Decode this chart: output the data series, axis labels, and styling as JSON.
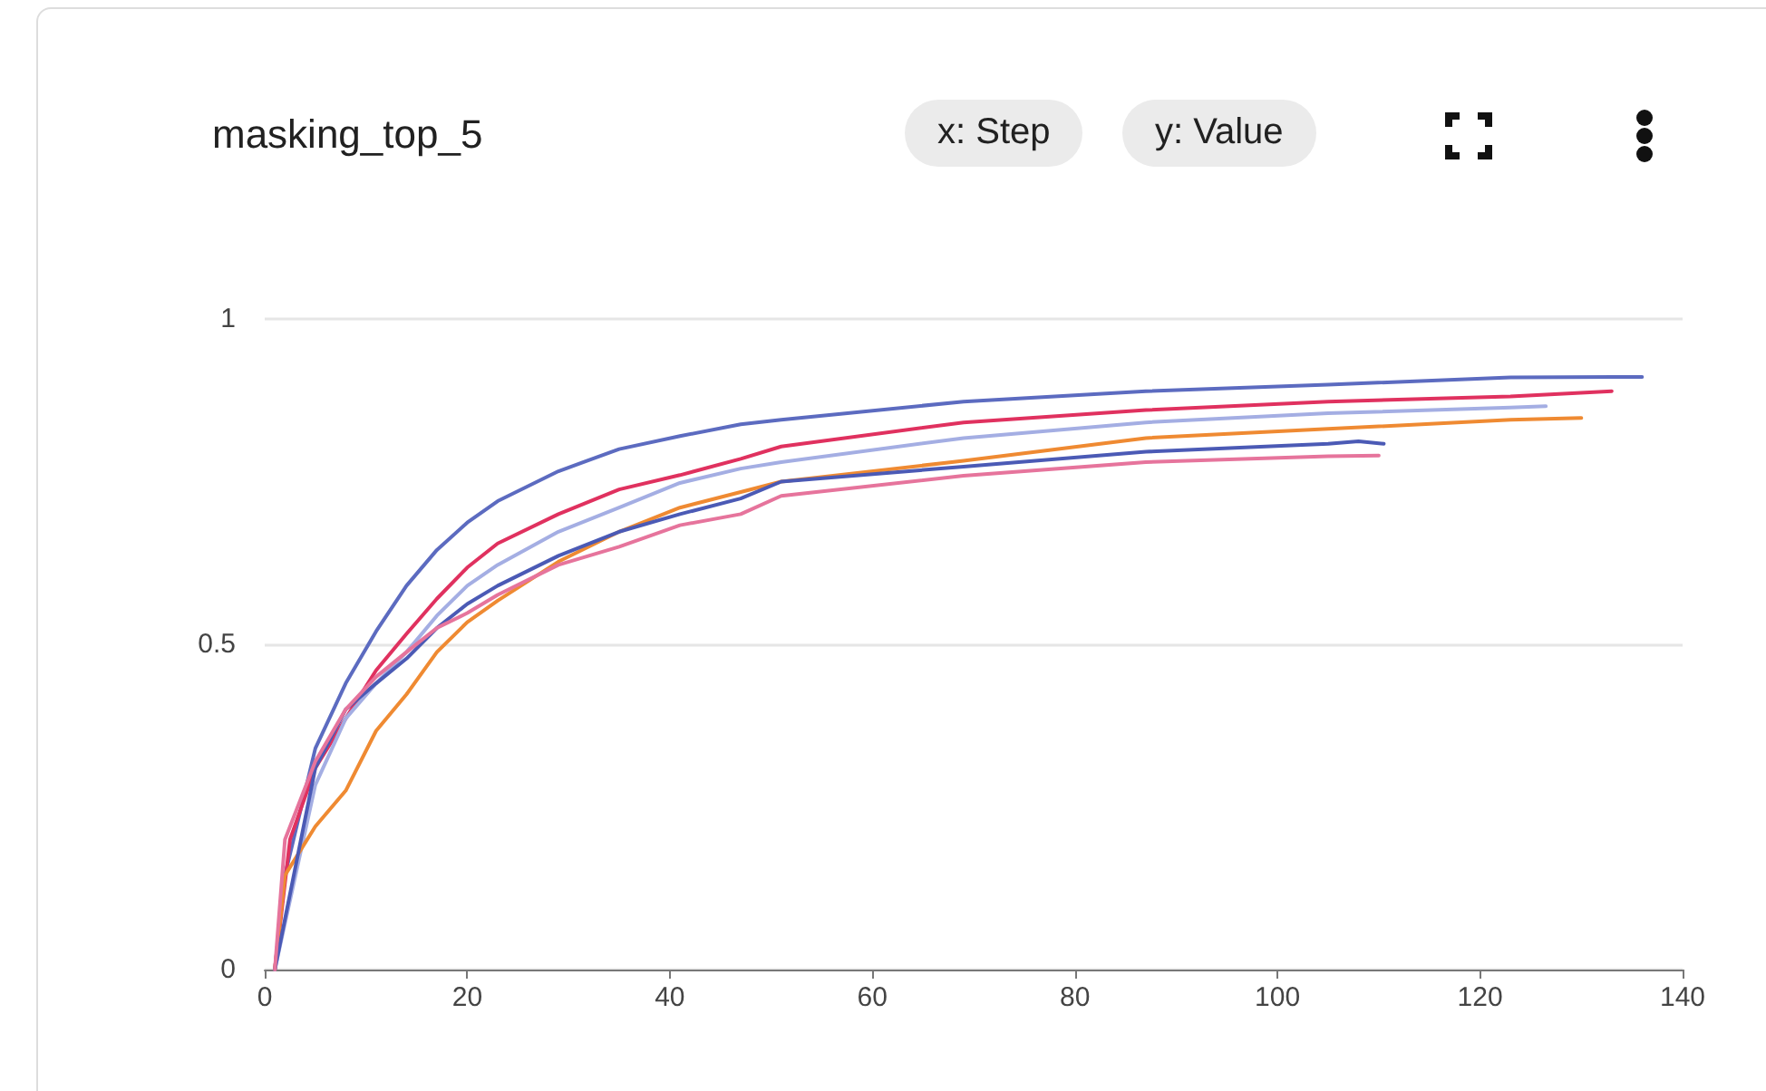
{
  "chart_data": {
    "type": "line",
    "title": "masking_top_5",
    "annotations": [
      "x: Step",
      "y: Value"
    ],
    "xlim": [
      0,
      140
    ],
    "xticks": [
      0,
      20,
      40,
      60,
      80,
      100,
      120,
      140
    ],
    "ylim": [
      0,
      1
    ],
    "yticks": [
      0,
      0.5,
      1
    ],
    "grid": "y",
    "marker": "none",
    "line_style": "solid",
    "series": [
      {
        "color": "#5c6bc0",
        "x": [
          1,
          2,
          5,
          8,
          11,
          14,
          17,
          20,
          23,
          29,
          35,
          41,
          47,
          51,
          69,
          87,
          105,
          123,
          136
        ],
        "values": [
          0,
          0.145,
          0.34,
          0.44,
          0.52,
          0.59,
          0.645,
          0.687,
          0.72,
          0.766,
          0.8,
          0.82,
          0.838,
          0.845,
          0.873,
          0.889,
          0.899,
          0.91,
          0.911
        ]
      },
      {
        "color": "#e0315f",
        "x": [
          1,
          2.5,
          5,
          8,
          11,
          14,
          17,
          20,
          23,
          29,
          35,
          41,
          47,
          51,
          69,
          87,
          105,
          123,
          133
        ],
        "values": [
          0,
          0.2,
          0.31,
          0.386,
          0.46,
          0.516,
          0.57,
          0.618,
          0.655,
          0.7,
          0.738,
          0.76,
          0.785,
          0.804,
          0.841,
          0.86,
          0.873,
          0.881,
          0.889
        ]
      },
      {
        "color": "#a4aee3",
        "x": [
          1,
          5,
          8,
          11,
          14,
          17,
          20,
          23,
          29,
          35,
          41,
          47,
          51,
          69,
          87,
          105,
          123,
          126.5
        ],
        "values": [
          0,
          0.284,
          0.386,
          0.44,
          0.488,
          0.544,
          0.59,
          0.622,
          0.673,
          0.71,
          0.748,
          0.77,
          0.78,
          0.817,
          0.841,
          0.855,
          0.864,
          0.866
        ]
      },
      {
        "color": "#ef8a32",
        "x": [
          1,
          2,
          5,
          8,
          11,
          14,
          17,
          20,
          23,
          29,
          35,
          41,
          47,
          51,
          69,
          87,
          105,
          123,
          130
        ],
        "values": [
          0,
          0.145,
          0.22,
          0.275,
          0.367,
          0.423,
          0.488,
          0.534,
          0.567,
          0.627,
          0.673,
          0.71,
          0.734,
          0.75,
          0.782,
          0.817,
          0.831,
          0.845,
          0.848
        ]
      },
      {
        "color": "#4b5ab5",
        "x": [
          1,
          5,
          8,
          11,
          14,
          17,
          20,
          23,
          29,
          35,
          41,
          47,
          51,
          69,
          87,
          105,
          108,
          110.5
        ],
        "values": [
          0,
          0.31,
          0.4,
          0.44,
          0.478,
          0.525,
          0.562,
          0.59,
          0.636,
          0.673,
          0.7,
          0.724,
          0.75,
          0.773,
          0.796,
          0.808,
          0.812,
          0.808
        ]
      },
      {
        "color": "#e6749c",
        "x": [
          1,
          2,
          5,
          8,
          11,
          14,
          17,
          20,
          23,
          29,
          35,
          41,
          47,
          51,
          69,
          87,
          105,
          110
        ],
        "values": [
          0,
          0.2,
          0.32,
          0.4,
          0.45,
          0.488,
          0.525,
          0.548,
          0.576,
          0.622,
          0.65,
          0.683,
          0.7,
          0.728,
          0.759,
          0.78,
          0.789,
          0.79
        ]
      }
    ]
  }
}
